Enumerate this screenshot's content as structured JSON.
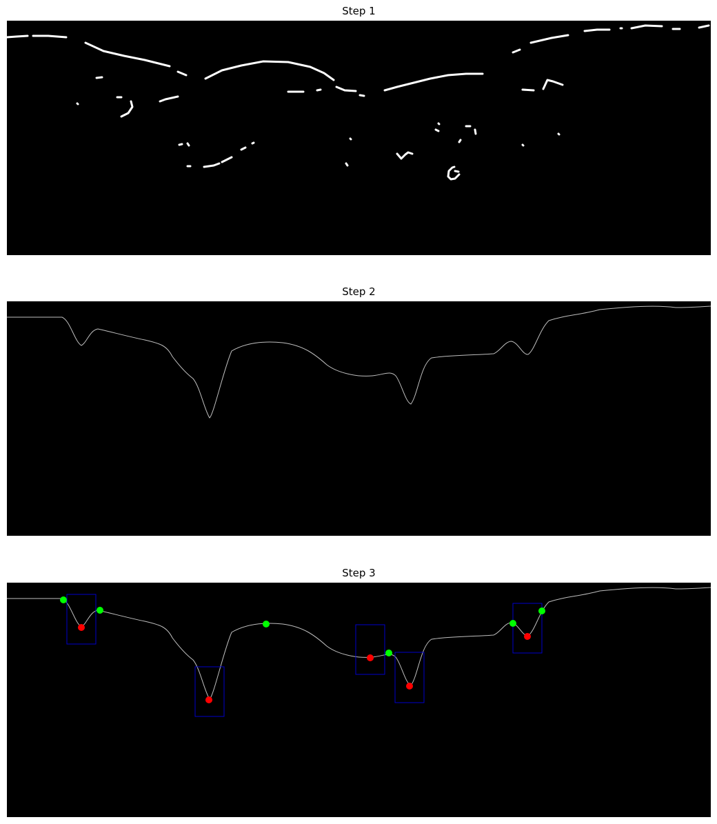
{
  "figure": {
    "panels": [
      {
        "title": "Step 1"
      },
      {
        "title": "Step 2"
      },
      {
        "title": "Step 3"
      }
    ]
  },
  "colors": {
    "background": "#000000",
    "figure_background": "#ffffff",
    "edge_fragments": "#ffffff",
    "profile_curve": "#bfbfbf",
    "peak_markers": "#00ff00",
    "valley_markers": "#ff0000",
    "valley_boxes": "#0000cc"
  },
  "marker_legend": {
    "peak_marker": "green-dot",
    "valley_marker": "red-dot",
    "valley_region": "blue-rectangle"
  }
}
